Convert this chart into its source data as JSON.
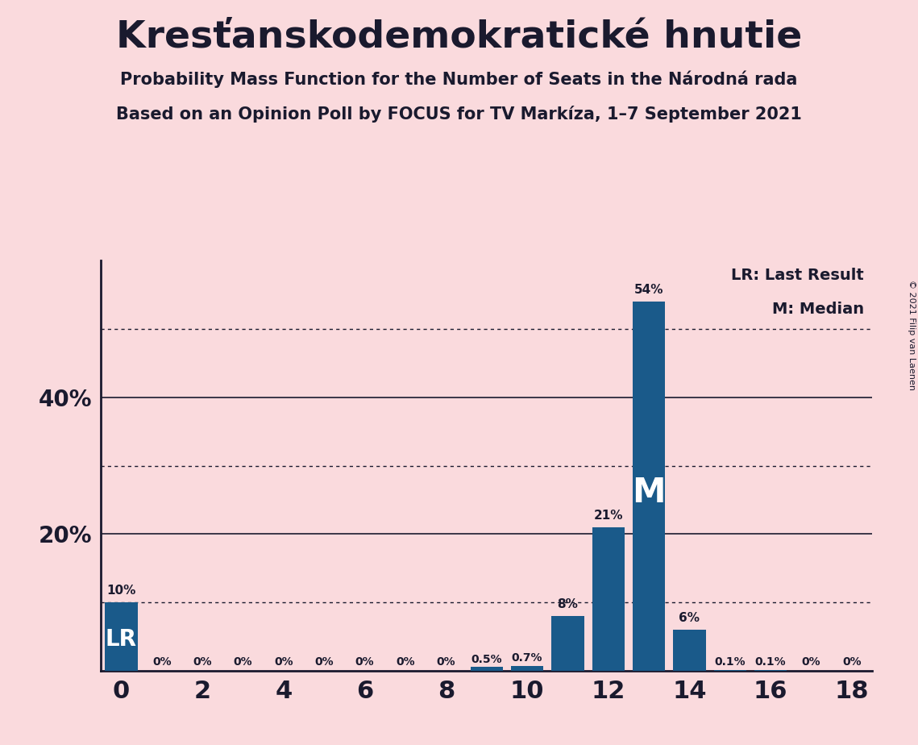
{
  "title": "Kresťanskodemokratické hnutie",
  "subtitle1": "Probability Mass Function for the Number of Seats in the Národná rada",
  "subtitle2": "Based on an Opinion Poll by FOCUS for TV Markíza, 1–7 September 2021",
  "copyright": "© 2021 Filip van Laenen",
  "seats": [
    0,
    1,
    2,
    3,
    4,
    5,
    6,
    7,
    8,
    9,
    10,
    11,
    12,
    13,
    14,
    15,
    16,
    17,
    18
  ],
  "probabilities": [
    10,
    0,
    0,
    0,
    0,
    0,
    0,
    0,
    0,
    0.5,
    0.7,
    8,
    21,
    54,
    6,
    0.1,
    0.1,
    0,
    0
  ],
  "bar_labels": [
    "10%",
    "0%",
    "0%",
    "0%",
    "0%",
    "0%",
    "0%",
    "0%",
    "0%",
    "0.5%",
    "0.7%",
    "8%",
    "21%",
    "54%",
    "6%",
    "0.1%",
    "0.1%",
    "0%",
    "0%"
  ],
  "bar_color": "#1a5a8a",
  "background_color": "#fadadd",
  "text_color": "#1a1a2e",
  "lr_seat": 0,
  "median_seat": 13,
  "solid_gridlines": [
    20,
    40
  ],
  "dotted_gridlines": [
    10,
    30,
    50
  ],
  "legend_text1": "LR: Last Result",
  "legend_text2": "M: Median",
  "lr_label": "LR",
  "median_label": "M",
  "xlim": [
    -0.5,
    18.5
  ],
  "ylim": [
    0,
    60
  ],
  "ytick_positions": [
    20,
    40
  ],
  "ytick_labels": [
    "20%",
    "40%"
  ],
  "xtick_positions": [
    0,
    2,
    4,
    6,
    8,
    10,
    12,
    14,
    16,
    18
  ]
}
